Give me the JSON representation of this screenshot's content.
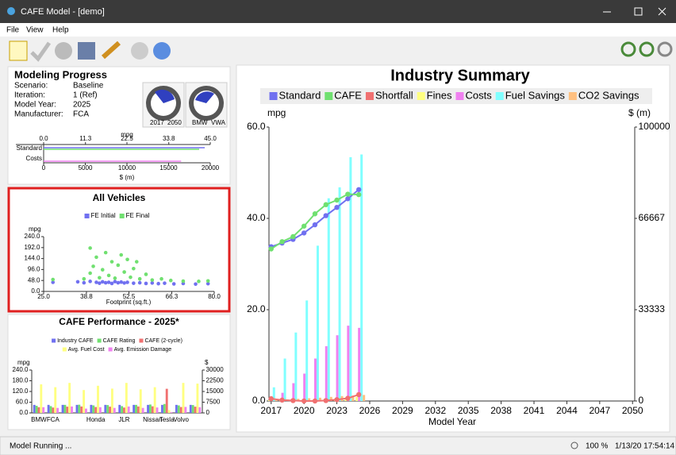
{
  "window": {
    "title": "CAFE Model - [demo]"
  },
  "menu": [
    "File",
    "View",
    "Help"
  ],
  "progress": {
    "title": "Modeling Progress",
    "fields": [
      [
        "Scenario:",
        "Baseline"
      ],
      [
        "Iteration:",
        "1 (Ref)"
      ],
      [
        "Model Year:",
        "2025"
      ],
      [
        "Manufacturer:",
        "FCA"
      ]
    ],
    "gauges": [
      [
        "2017",
        "2050"
      ],
      [
        "BMW",
        "VWA"
      ]
    ]
  },
  "status": {
    "left": "Model Running ...",
    "zoom": "100 %",
    "time": "1/13/20 17:54:14"
  },
  "chart_data": [
    {
      "type": "scatter",
      "title": "All Vehicles",
      "x_label": "Footprint (sq.ft.)",
      "y_label": "mpg",
      "xlim": [
        25,
        80
      ],
      "xticks": [
        {
          "value": 25,
          "label": "25.0"
        },
        38.8,
        52.5,
        66.3,
        {
          "value": 80,
          "label": "80.0"
        }
      ],
      "ylim": [
        0,
        240
      ],
      "yticks": [
        {
          "value": 0,
          "label": "0.0"
        },
        {
          "value": 48,
          "label": "48.0"
        },
        {
          "value": 96,
          "label": "96.0"
        },
        {
          "value": 144,
          "label": "144.0"
        },
        {
          "value": 192,
          "label": "192.0"
        },
        {
          "value": 240,
          "label": "240.0"
        }
      ],
      "series": [
        {
          "name": "FE Initial",
          "color": "#7070f0",
          "x": [
            28,
            36,
            38,
            40,
            42,
            43,
            44,
            45,
            46,
            47,
            48,
            49,
            50,
            51,
            52,
            54,
            56,
            58,
            60,
            62,
            64,
            67,
            70,
            74,
            78
          ],
          "values": [
            40,
            42,
            38,
            44,
            40,
            36,
            42,
            38,
            40,
            35,
            43,
            38,
            41,
            37,
            40,
            36,
            38,
            35,
            37,
            34,
            36,
            33,
            35,
            32,
            34
          ]
        },
        {
          "name": "FE Final",
          "color": "#70e070",
          "x": [
            28,
            38,
            40,
            40,
            41,
            42,
            43,
            44,
            45,
            46,
            47,
            48,
            49,
            50,
            51,
            52,
            53,
            54,
            55,
            56,
            58,
            60,
            63,
            66,
            70,
            75,
            78
          ],
          "values": [
            52,
            55,
            80,
            190,
            110,
            150,
            60,
            95,
            170,
            70,
            130,
            58,
            115,
            160,
            85,
            140,
            62,
            100,
            130,
            55,
            75,
            50,
            55,
            48,
            45,
            44,
            46
          ]
        }
      ]
    },
    {
      "type": "bar",
      "title": "CAFE Performance - 2025*",
      "y_label": "mpg",
      "y2_label": "$",
      "categories": [
        "BMW",
        "FCA",
        null,
        null,
        "Honda",
        null,
        "JLR",
        null,
        "Nissan",
        "Tesla",
        "Volvo",
        null
      ],
      "ylim": [
        0,
        240
      ],
      "yticks": [
        {
          "value": 0,
          "label": "0.0"
        },
        {
          "value": 60,
          "label": "60.0"
        },
        {
          "value": 120,
          "label": "120.0"
        },
        {
          "value": 180,
          "label": "180.0"
        },
        {
          "value": 240,
          "label": "240.0"
        }
      ],
      "y2lim": [
        0,
        30000
      ],
      "y2ticks": [
        0,
        7500,
        15000,
        22500,
        30000
      ],
      "series": [
        {
          "name": "Industry CAFE",
          "color": "#7070f0",
          "values": [
            45,
            45,
            45,
            45,
            45,
            45,
            45,
            45,
            45,
            45,
            45,
            45
          ]
        },
        {
          "name": "CAFE Rating",
          "color": "#70e070",
          "values": [
            40,
            38,
            45,
            46,
            42,
            44,
            38,
            45,
            47,
            50,
            42,
            44
          ]
        },
        {
          "name": "CAFE (2-cycle)",
          "color": "#f07070",
          "values": [
            32,
            30,
            35,
            36,
            33,
            35,
            30,
            36,
            37,
            135,
            33,
            35
          ]
        },
        {
          "name": "Avg. Fuel Cost",
          "color": "#ffff80",
          "axis": "y2",
          "values": [
            20000,
            18000,
            21000,
            16000,
            19000,
            17000,
            21000,
            16500,
            18000,
            2000,
            21000,
            20500
          ]
        },
        {
          "name": "Avg. Emission Damage",
          "color": "#f080f0",
          "axis": "y2",
          "values": [
            4000,
            3500,
            4500,
            3000,
            4000,
            3500,
            4500,
            3500,
            3800,
            500,
            4200,
            4000
          ]
        }
      ]
    },
    {
      "type": "combo",
      "title": "Industry Summary",
      "x_label": "Model Year",
      "y_label": "mpg",
      "y2_label": "$ (m)",
      "x": [
        2017,
        2018,
        2019,
        2020,
        2021,
        2022,
        2023,
        2024,
        2025
      ],
      "xlim": [
        2016.8,
        2050.2
      ],
      "xticks": [
        2017,
        2020,
        2023,
        2026,
        2029,
        2032,
        2035,
        2038,
        2041,
        2044,
        2047,
        2050
      ],
      "ylim": [
        0,
        60
      ],
      "yticks": [
        {
          "value": 0,
          "label": "0.0"
        },
        {
          "value": 20,
          "label": "20.0"
        },
        {
          "value": 40,
          "label": "40.0"
        },
        {
          "value": 60,
          "label": "60.0"
        }
      ],
      "y2lim": [
        0,
        100000
      ],
      "y2ticks": [
        0,
        33333,
        66667,
        100000
      ],
      "series": [
        {
          "name": "Standard",
          "color": "#7070f0",
          "kind": "line",
          "values": [
            33.8,
            34.6,
            35.4,
            36.8,
            38.6,
            40.6,
            42.4,
            44.3,
            46.3
          ]
        },
        {
          "name": "CAFE",
          "color": "#70e070",
          "kind": "line",
          "values": [
            33.3,
            34.9,
            36.0,
            38.3,
            41.0,
            43.0,
            44.0,
            45.3,
            45.2
          ]
        },
        {
          "name": "Shortfall",
          "color": "#f07070",
          "kind": "line",
          "values": [
            0.5,
            0.2,
            0.1,
            0.0,
            0.0,
            0.1,
            0.3,
            0.6,
            1.4
          ]
        },
        {
          "name": "Fines",
          "color": "#ffff80",
          "kind": "bar",
          "axis": "y2",
          "values": [
            300,
            200,
            200,
            100,
            100,
            300,
            600,
            1200,
            1500
          ]
        },
        {
          "name": "Costs",
          "color": "#f080f0",
          "kind": "bar",
          "axis": "y2",
          "values": [
            1000,
            3000,
            6500,
            10000,
            15500,
            20000,
            24000,
            27500,
            26700
          ]
        },
        {
          "name": "Fuel Savings",
          "color": "#80ffff",
          "kind": "bar",
          "axis": "y2",
          "values": [
            5000,
            15500,
            25000,
            36700,
            56700,
            74000,
            78000,
            89000,
            90000
          ]
        },
        {
          "name": "CO2 Savings",
          "color": "#ffc080",
          "kind": "bar",
          "axis": "y2",
          "values": [
            300,
            600,
            800,
            1000,
            1200,
            1500,
            1800,
            2000,
            2200
          ]
        }
      ]
    },
    {
      "type": "progress",
      "y_label": "mpg",
      "x2_label": "$ (m)",
      "categories": [
        "Standard",
        "Costs"
      ],
      "xlim": [
        0,
        45
      ],
      "xticks": [
        {
          "value": 0,
          "label": "0.0"
        },
        11.3,
        {
          "value": 22.5,
          "label": "22.5"
        },
        33.8,
        {
          "value": 45,
          "label": "45.0"
        }
      ],
      "x2lim": [
        0,
        20000
      ],
      "x2ticks": [
        0,
        5000,
        10000,
        15000,
        20000
      ],
      "series": [
        {
          "color": "#7070f0",
          "values": [
            43.5,
            null
          ]
        },
        {
          "color": "#70e070",
          "values": [
            42,
            null
          ]
        },
        {
          "color": "#f080f0",
          "axis": "x2",
          "values": [
            null,
            16500
          ]
        }
      ]
    }
  ]
}
